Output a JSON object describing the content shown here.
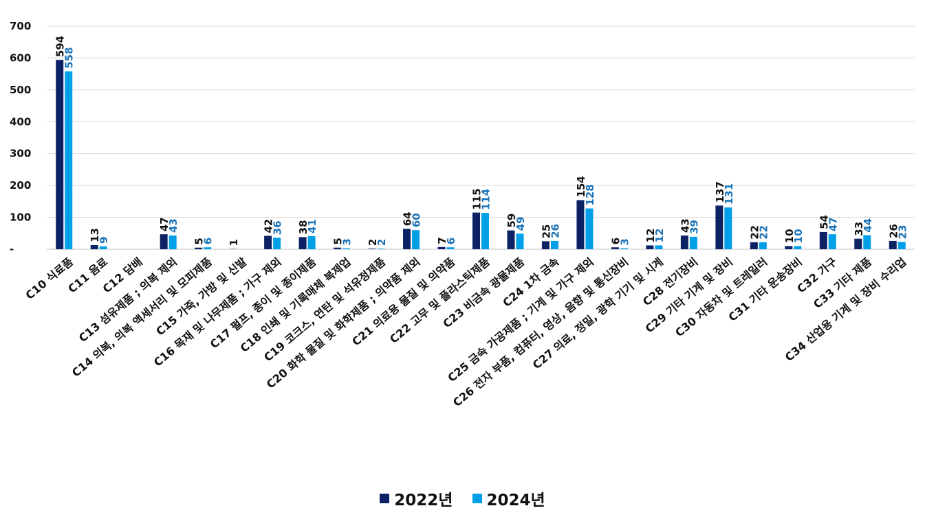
{
  "chart_data": {
    "type": "bar",
    "categories": [
      "C10 식료품",
      "C11 음료",
      "C12 담배",
      "C13 섬유제품 ; 의복 제외",
      "C14 의복, 의복 액세서리 및 모피제품",
      "C15 가죽, 가방 및 신발",
      "C16 목재 및 나무제품 ; 가구 제외",
      "C17 펄프, 종이 및 종이제품",
      "C18 인쇄 및 기록매체 복제업",
      "C19 코크스, 연탄 및 석유정제품",
      "C20 화학 물질 및 화학제품 ; 의약품 제외",
      "C21 의료용 물질 및 의약품",
      "C22 고무 및 플라스틱제품",
      "C23 비금속 광물제품",
      "C24 1차 금속",
      "C25 금속 가공제품 ; 기계 및 가구 제외",
      "C26 전자 부품, 컴퓨터, 영상, 음향 및 통신장비",
      "C27 의료, 정밀, 광학 기기 및 시계",
      "C28 전기장비",
      "C29 기타 기계 및 장비",
      "C30 자동차 및 트레일러",
      "C31 기타 운송장비",
      "C32 가구",
      "C33 기타 제품",
      "C34 산업용 기계 및 장비 수리업"
    ],
    "series": [
      {
        "name": "2022년",
        "color": "#0d2265",
        "values": [
          594,
          13,
          null,
          47,
          5,
          1,
          42,
          38,
          5,
          2,
          64,
          7,
          115,
          59,
          25,
          154,
          6,
          12,
          43,
          137,
          22,
          10,
          54,
          33,
          26
        ],
        "labels": [
          "594",
          "13",
          "",
          "47",
          "5",
          "1",
          "42",
          "38",
          "5",
          "2",
          "64",
          "7",
          "115",
          "59",
          "25",
          "154",
          "6",
          "12",
          "43",
          "137",
          "22",
          "10",
          "54",
          "33",
          "26"
        ]
      },
      {
        "name": "2024년",
        "color": "#00a0e9",
        "label_color": "#1a73b8",
        "values": [
          558,
          9,
          null,
          43,
          6,
          null,
          36,
          41,
          3,
          2,
          60,
          6,
          114,
          49,
          26,
          128,
          3,
          12,
          39,
          131,
          22,
          10,
          47,
          44,
          23
        ],
        "labels": [
          "558",
          "9",
          "",
          "43",
          "6",
          "",
          "36",
          "41",
          "3",
          "2",
          "60",
          "6",
          "114",
          "49",
          "26",
          "128",
          "3",
          "12",
          "39",
          "131",
          "22",
          "10",
          "47",
          "44",
          "23"
        ]
      }
    ],
    "yticks": [
      "-",
      "100",
      "200",
      "300",
      "400",
      "500",
      "600",
      "700"
    ],
    "ylim": [
      0,
      700
    ],
    "grid": true,
    "legend_position": "bottom",
    "title": "",
    "xlabel": "",
    "ylabel": ""
  },
  "legend": {
    "items": [
      {
        "label": "2022년",
        "color": "#0d2265"
      },
      {
        "label": "2024년",
        "color": "#00a0e9"
      }
    ]
  }
}
